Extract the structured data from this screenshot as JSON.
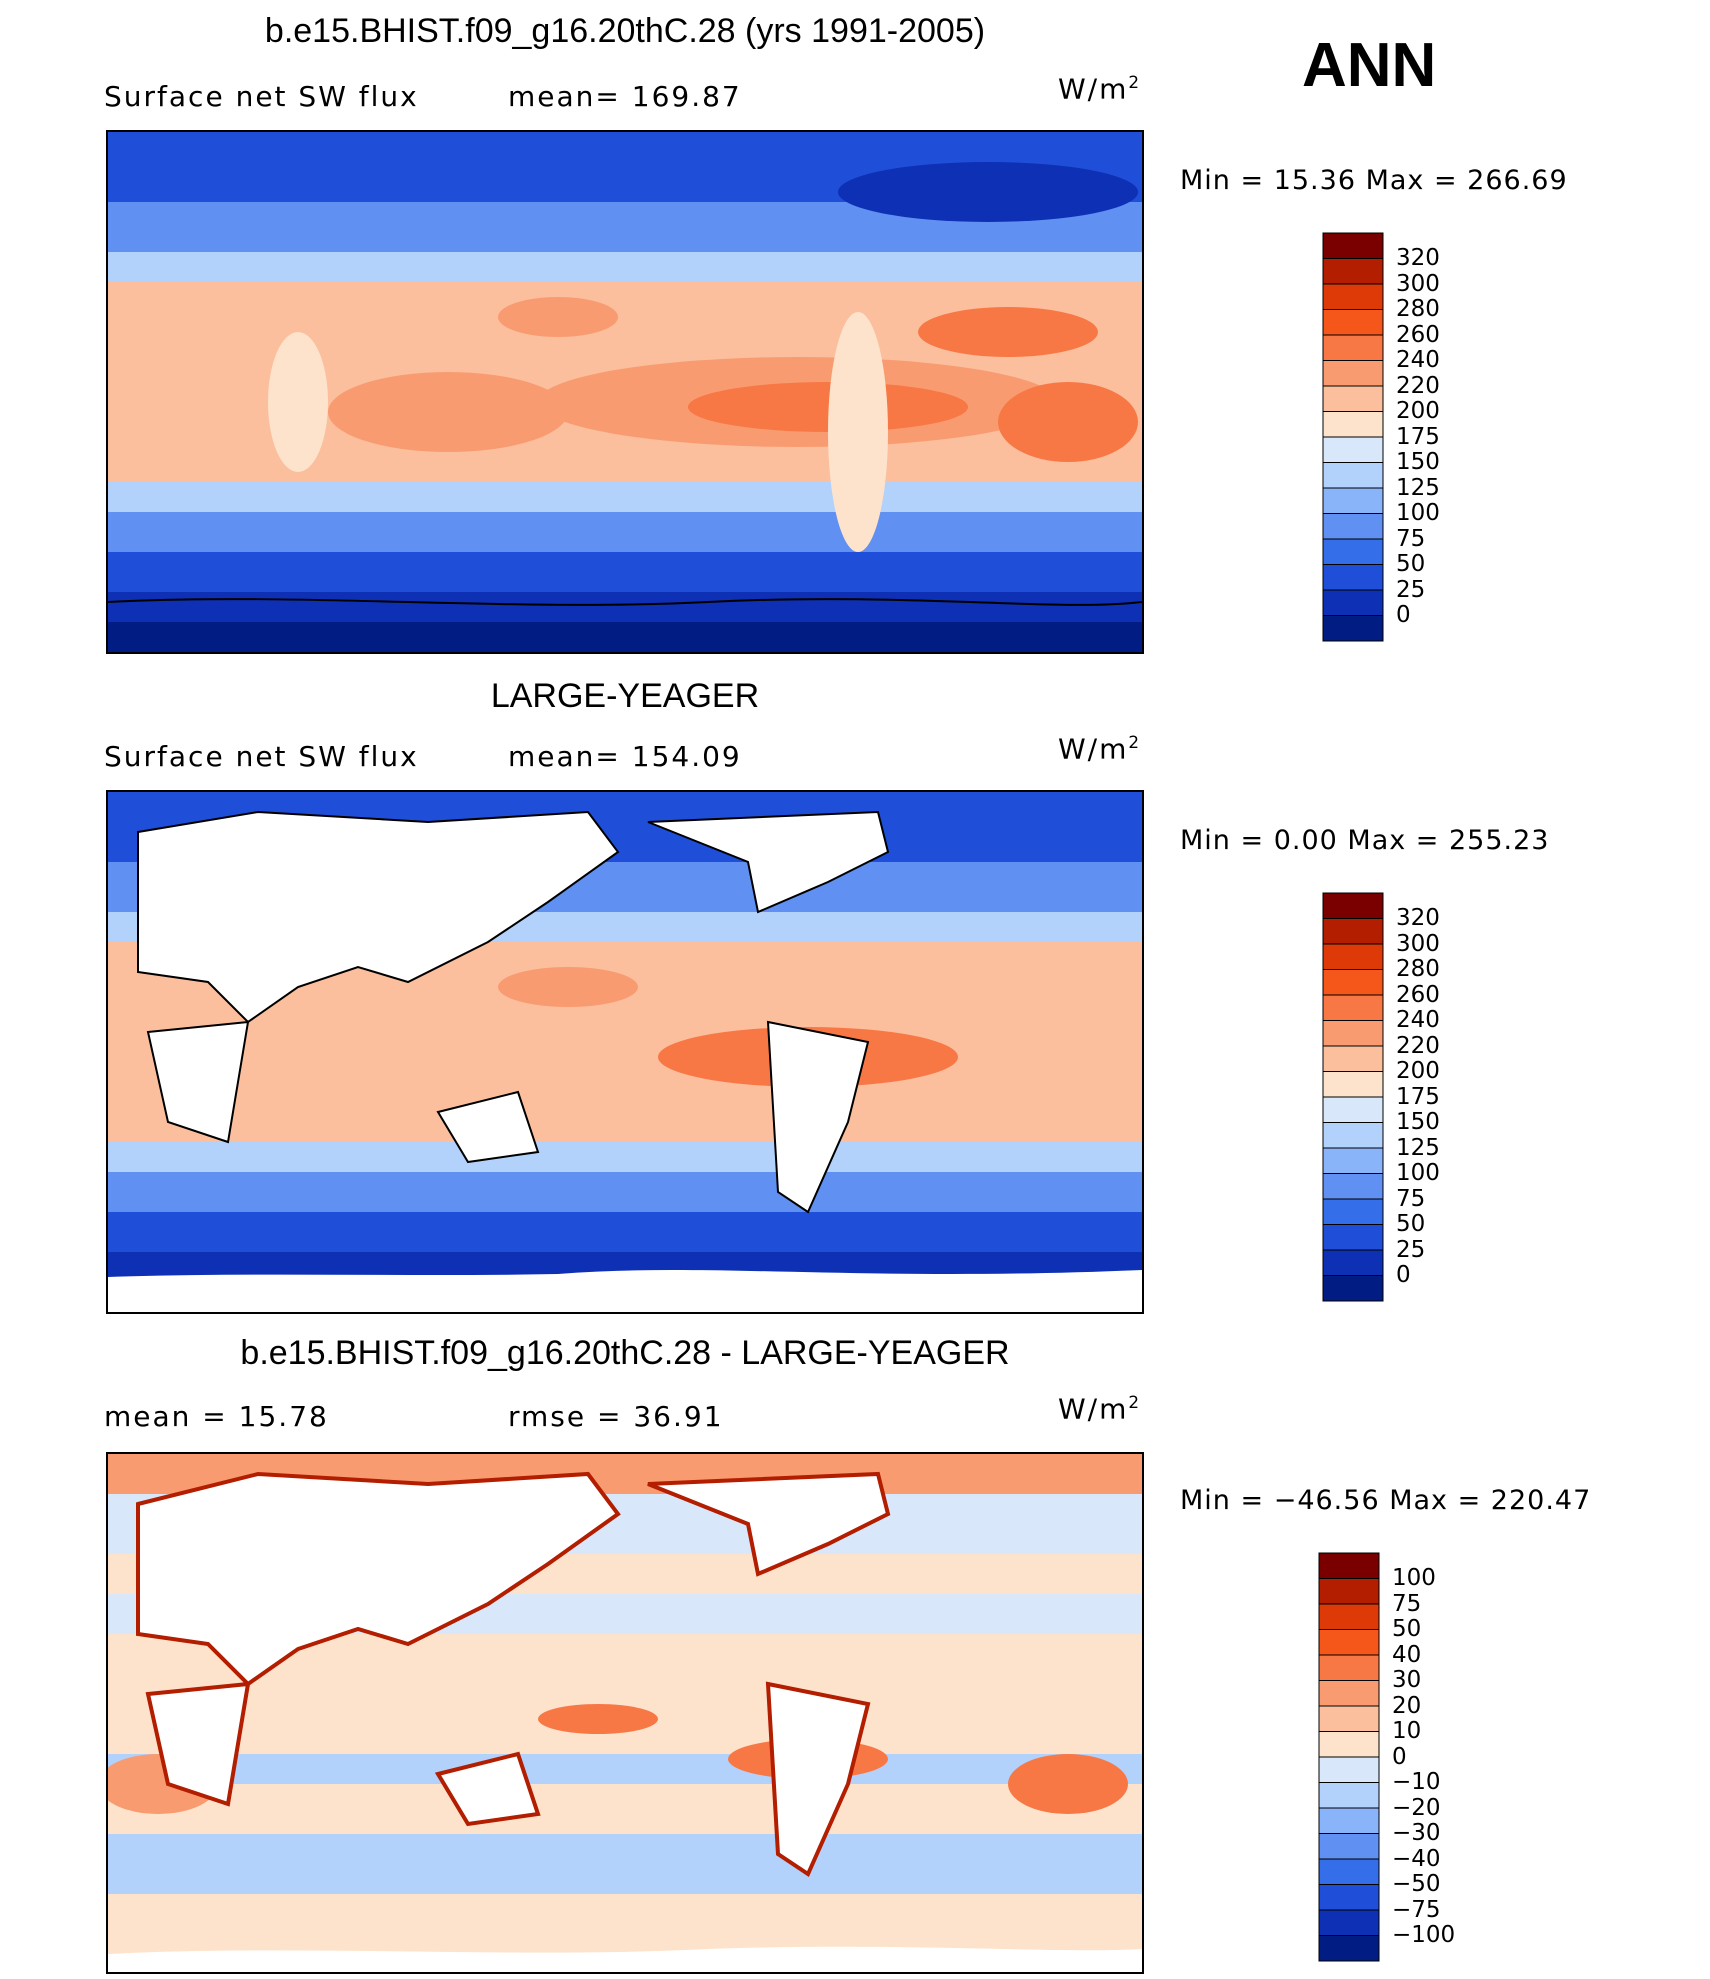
{
  "season": "ANN",
  "units_main": "W/m",
  "units_sup": "2",
  "panels": [
    {
      "title": "b.e15.BHIST.f09_g16.20thC.28 (yrs 1991-2005)",
      "left_label": "Surface net SW flux",
      "right_label": "mean=  169.87",
      "minmax": "Min  =    15.36  Max  =  266.69"
    },
    {
      "title": "LARGE-YEAGER",
      "left_label": "Surface net SW flux",
      "right_label": "mean=  154.09",
      "minmax": "Min  =     0.00  Max  =  255.23"
    },
    {
      "title": "b.e15.BHIST.f09_g16.20thC.28 - LARGE-YEAGER",
      "left_label": "mean  =    15.78",
      "right_label": "rmse  =    36.91",
      "minmax": "Min  =  −46.56  Max  =  220.47"
    }
  ],
  "chart_data": [
    {
      "type": "heatmap",
      "title": "b.e15.BHIST.f09_g16.20thC.28 (yrs 1991-2005)",
      "variable": "Surface net SW flux",
      "units": "W/m2",
      "mean": 169.87,
      "min": 15.36,
      "max": 266.69,
      "land_masked": false,
      "levels": [
        "320",
        "300",
        "280",
        "260",
        "240",
        "220",
        "200",
        "175",
        "150",
        "125",
        "100",
        "75",
        "50",
        "25",
        "0"
      ],
      "colors": [
        "#7a0000",
        "#b31d00",
        "#dd3a08",
        "#f5561a",
        "#f87845",
        "#f99b70",
        "#fbbf9e",
        "#fde3cc",
        "#d8e8fa",
        "#b2d1fb",
        "#8ab4fa",
        "#5f90f2",
        "#356ee9",
        "#1f4ed8",
        "#0e30b4",
        "#011c82"
      ]
    },
    {
      "type": "heatmap",
      "title": "LARGE-YEAGER",
      "variable": "Surface net SW flux",
      "units": "W/m2",
      "mean": 154.09,
      "min": 0.0,
      "max": 255.23,
      "land_masked": true,
      "levels": [
        "320",
        "300",
        "280",
        "260",
        "240",
        "220",
        "200",
        "175",
        "150",
        "125",
        "100",
        "75",
        "50",
        "25",
        "0"
      ],
      "colors": [
        "#7a0000",
        "#b31d00",
        "#dd3a08",
        "#f5561a",
        "#f87845",
        "#f99b70",
        "#fbbf9e",
        "#fde3cc",
        "#d8e8fa",
        "#b2d1fb",
        "#8ab4fa",
        "#5f90f2",
        "#356ee9",
        "#1f4ed8",
        "#0e30b4",
        "#011c82"
      ]
    },
    {
      "type": "heatmap",
      "title": "b.e15.BHIST.f09_g16.20thC.28 - LARGE-YEAGER",
      "units": "W/m2",
      "mean": 15.78,
      "rmse": 36.91,
      "min": -46.56,
      "max": 220.47,
      "land_masked": true,
      "levels": [
        "100",
        "75",
        "50",
        "40",
        "30",
        "20",
        "10",
        "0",
        "−10",
        "−20",
        "−30",
        "−40",
        "−50",
        "−75",
        "−100"
      ],
      "colors": [
        "#7a0000",
        "#b31d00",
        "#dd3a08",
        "#f5561a",
        "#f87845",
        "#f99b70",
        "#fbbf9e",
        "#fde3cc",
        "#d8e8fa",
        "#b2d1fb",
        "#8ab4fa",
        "#5f90f2",
        "#356ee9",
        "#1f4ed8",
        "#0e30b4",
        "#011c82"
      ]
    }
  ]
}
